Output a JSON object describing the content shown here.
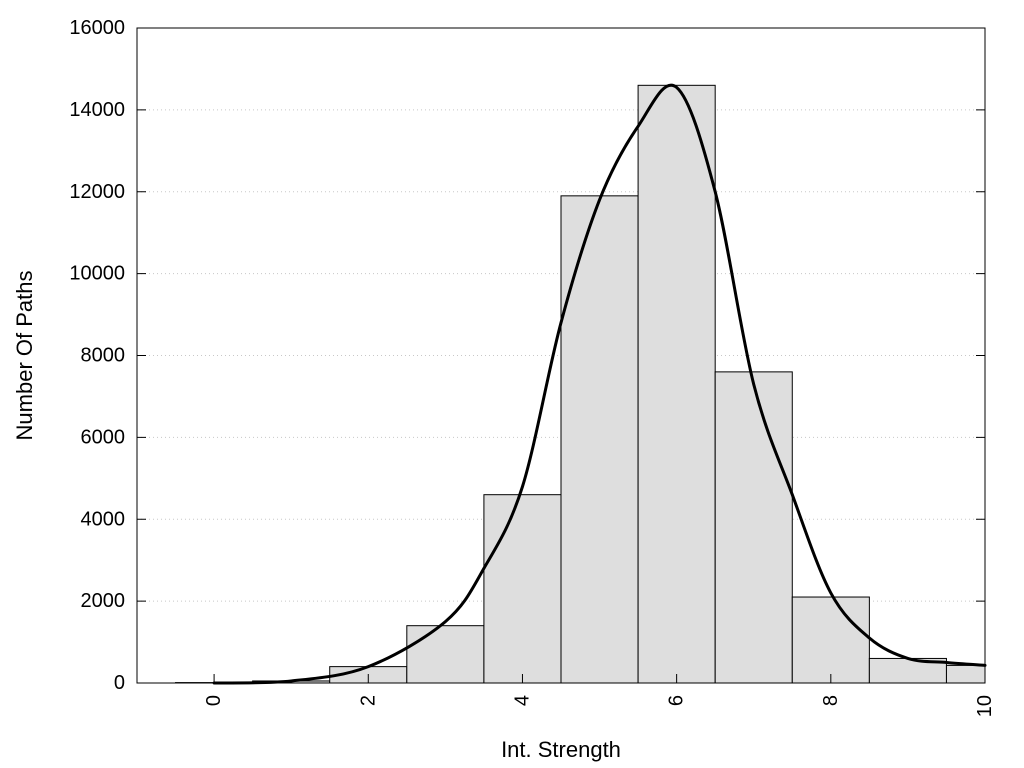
{
  "chart_data": {
    "type": "bar",
    "title": "",
    "xlabel": "Int. Strength",
    "ylabel": "Number Of Paths",
    "xlim": [
      -1,
      10
    ],
    "ylim": [
      0,
      16000
    ],
    "x_ticks": [
      0,
      2,
      4,
      6,
      8,
      10
    ],
    "y_ticks": [
      0,
      2000,
      4000,
      6000,
      8000,
      10000,
      12000,
      14000,
      16000
    ],
    "grid": "horizontal-dotted",
    "legend": "none",
    "bar_width": 1,
    "categories": [
      0,
      1,
      2,
      3,
      4,
      5,
      6,
      7,
      8,
      9,
      10
    ],
    "values": [
      10,
      50,
      400,
      1400,
      4600,
      11900,
      14600,
      7600,
      2100,
      600,
      430
    ],
    "series": [
      {
        "type": "line",
        "x": [
          0,
          1,
          2,
          3,
          3.5,
          4,
          4.5,
          5,
          5.5,
          6,
          6.5,
          7,
          7.5,
          8,
          8.5,
          9,
          9.5,
          10
        ],
        "values": [
          0,
          50,
          400,
          1500,
          2800,
          4800,
          8800,
          11800,
          13600,
          14550,
          12000,
          7300,
          4600,
          2200,
          1100,
          600,
          500,
          430
        ]
      }
    ],
    "colors": {
      "bar_fill": "#dedede",
      "bar_stroke": "#000000",
      "line": "#000000",
      "grid": "#c8c8c8"
    }
  }
}
